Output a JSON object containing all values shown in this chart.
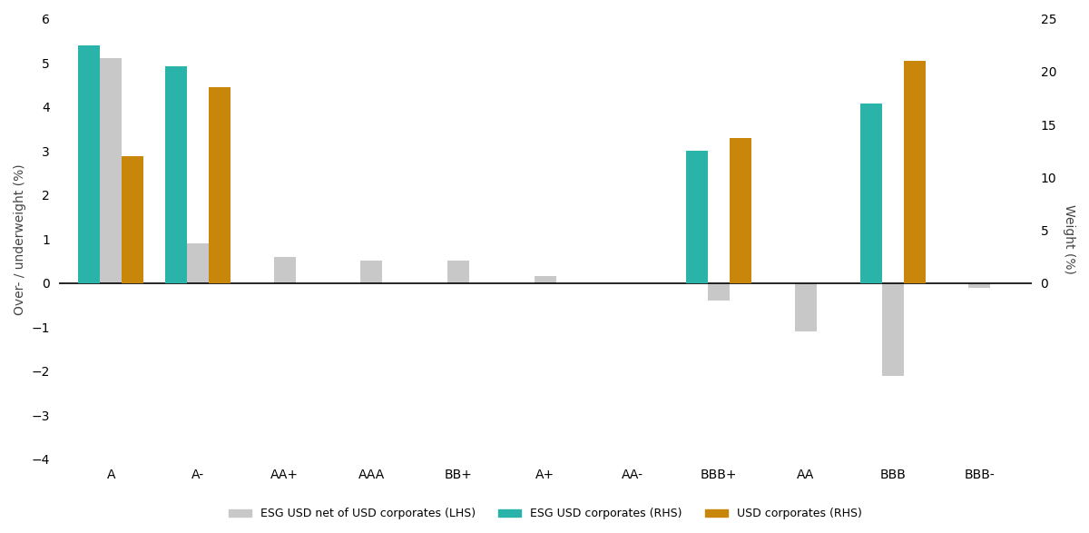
{
  "categories": [
    "A",
    "A-",
    "AA+",
    "AAA",
    "BB+",
    "A+",
    "AA-",
    "BBB+",
    "AA",
    "BBB",
    "BBB-"
  ],
  "lhs_gray": [
    5.1,
    0.9,
    0.6,
    0.5,
    0.5,
    0.15,
    0.0,
    -0.4,
    -1.1,
    -2.1,
    -0.1
  ],
  "rhs_teal": [
    22.5,
    20.5,
    0.0,
    0.0,
    0.0,
    0.0,
    0.0,
    12.5,
    0.0,
    17.0,
    0.0
  ],
  "rhs_gold": [
    12.0,
    18.5,
    0.0,
    0.0,
    0.0,
    0.0,
    0.0,
    13.75,
    0.0,
    21.0,
    0.0
  ],
  "lhs_ylim": [
    -4,
    6
  ],
  "rhs_ylim": [
    0,
    25
  ],
  "lhs_yticks": [
    -4,
    -3,
    -2,
    -1,
    0,
    1,
    2,
    3,
    4,
    5,
    6
  ],
  "rhs_yticks": [
    0,
    5,
    10,
    15,
    20,
    25
  ],
  "lhs_ylabel": "Over- / underweight (%)",
  "rhs_ylabel": "Weight (%)",
  "legend_labels": [
    "ESG USD net of USD corporates (LHS)",
    "ESG USD corporates (RHS)",
    "USD corporates (RHS)"
  ],
  "color_gray": "#c8c8c8",
  "color_teal": "#2ab3a8",
  "color_gold": "#c8860a",
  "background_color": "#ffffff",
  "bar_width": 0.25
}
